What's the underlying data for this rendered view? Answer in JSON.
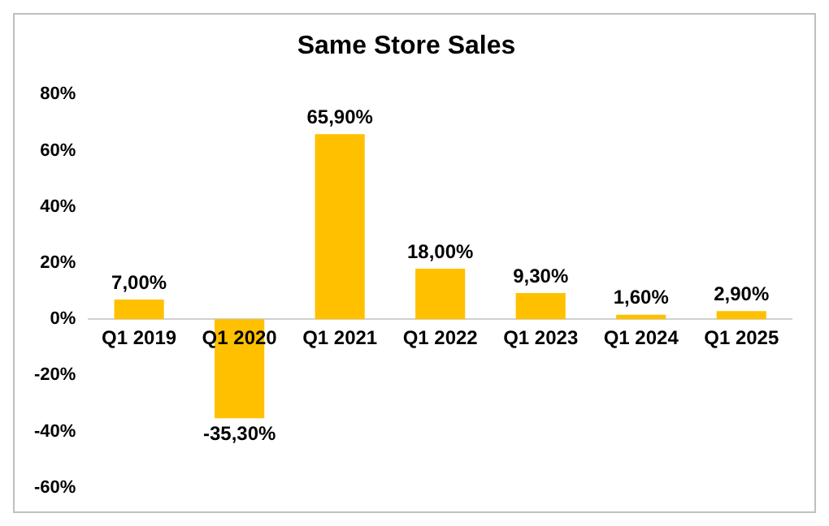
{
  "chart_data": {
    "type": "bar",
    "title": "Same Store Sales",
    "categories": [
      "Q1 2019",
      "Q1 2020",
      "Q1 2021",
      "Q1 2022",
      "Q1 2023",
      "Q1 2024",
      "Q1 2025"
    ],
    "values": [
      7.0,
      -35.3,
      65.9,
      18.0,
      9.3,
      1.6,
      2.9
    ],
    "value_labels": [
      "7,00%",
      "-35,30%",
      "65,90%",
      "18,00%",
      "9,30%",
      "1,60%",
      "2,90%"
    ],
    "color": "#ffc000",
    "ylim": [
      -60,
      80
    ],
    "yticks": [
      {
        "value": -60,
        "label": "-60%"
      },
      {
        "value": -40,
        "label": "-40%"
      },
      {
        "value": -20,
        "label": "-20%"
      },
      {
        "value": 0,
        "label": "0%"
      },
      {
        "value": 20,
        "label": "20%"
      },
      {
        "value": 40,
        "label": "40%"
      },
      {
        "value": 60,
        "label": "60%"
      },
      {
        "value": 80,
        "label": "80%"
      }
    ],
    "grid": false,
    "legend": false
  }
}
